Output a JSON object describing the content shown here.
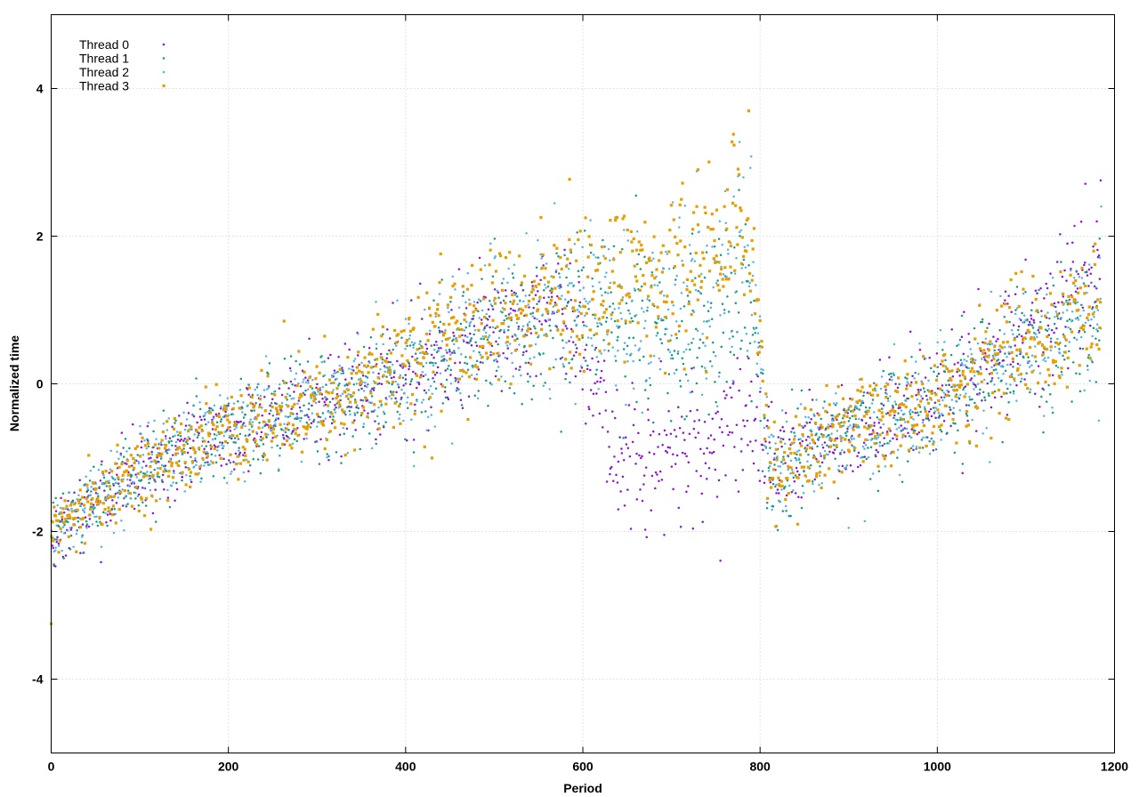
{
  "chart_data": {
    "type": "scatter",
    "title": "",
    "xlabel": "Period",
    "ylabel": "Normalized time",
    "xlim": [
      0,
      1200
    ],
    "ylim": [
      -5,
      5
    ],
    "x_ticks": [
      0,
      200,
      400,
      600,
      800,
      1000,
      1200
    ],
    "y_ticks": [
      -4,
      -2,
      0,
      2,
      4
    ],
    "grid": true,
    "legend_position": "top-left",
    "series": [
      {
        "name": "Thread 0",
        "color": "#8b14d6",
        "marker": "dot",
        "profile": [
          [
            0,
            -2.0
          ],
          [
            100,
            -1.2
          ],
          [
            200,
            -0.6
          ],
          [
            300,
            -0.3
          ],
          [
            400,
            0.2
          ],
          [
            500,
            0.7
          ],
          [
            580,
            1.0
          ],
          [
            640,
            -0.8
          ],
          [
            700,
            -1.0
          ],
          [
            790,
            -0.6
          ],
          [
            820,
            -1.1
          ],
          [
            900,
            -0.6
          ],
          [
            1000,
            -0.2
          ],
          [
            1100,
            0.7
          ],
          [
            1180,
            1.6
          ]
        ],
        "spread": [
          [
            0,
            0.25
          ],
          [
            300,
            0.35
          ],
          [
            580,
            0.45
          ],
          [
            640,
            0.5
          ],
          [
            790,
            0.5
          ],
          [
            820,
            0.3
          ],
          [
            1180,
            0.45
          ]
        ]
      },
      {
        "name": "Thread 1",
        "color": "#159a86",
        "marker": "dot",
        "profile": [
          [
            0,
            -2.0
          ],
          [
            100,
            -1.2
          ],
          [
            200,
            -0.6
          ],
          [
            300,
            -0.3
          ],
          [
            400,
            0.2
          ],
          [
            500,
            0.7
          ],
          [
            600,
            1.0
          ],
          [
            700,
            0.6
          ],
          [
            790,
            1.3
          ],
          [
            810,
            -1.2
          ],
          [
            900,
            -0.6
          ],
          [
            1000,
            -0.2
          ],
          [
            1100,
            0.4
          ],
          [
            1180,
            0.8
          ]
        ],
        "spread": [
          [
            0,
            0.25
          ],
          [
            300,
            0.35
          ],
          [
            600,
            0.55
          ],
          [
            790,
            0.6
          ],
          [
            810,
            0.3
          ],
          [
            1180,
            0.45
          ]
        ]
      },
      {
        "name": "Thread 2",
        "color": "#56b4e9",
        "marker": "dot",
        "profile": [
          [
            0,
            -2.0
          ],
          [
            100,
            -1.2
          ],
          [
            200,
            -0.6
          ],
          [
            300,
            -0.3
          ],
          [
            400,
            0.2
          ],
          [
            500,
            0.8
          ],
          [
            600,
            1.1
          ],
          [
            700,
            0.9
          ],
          [
            790,
            1.6
          ],
          [
            810,
            -1.2
          ],
          [
            900,
            -0.6
          ],
          [
            1000,
            -0.2
          ],
          [
            1100,
            0.5
          ],
          [
            1180,
            0.9
          ]
        ],
        "spread": [
          [
            0,
            0.25
          ],
          [
            300,
            0.35
          ],
          [
            600,
            0.55
          ],
          [
            790,
            0.65
          ],
          [
            810,
            0.3
          ],
          [
            1180,
            0.45
          ]
        ]
      },
      {
        "name": "Thread 3",
        "color": "#e69f00",
        "marker": "square",
        "profile": [
          [
            0,
            -2.0
          ],
          [
            100,
            -1.2
          ],
          [
            200,
            -0.6
          ],
          [
            300,
            -0.3
          ],
          [
            400,
            0.3
          ],
          [
            500,
            0.9
          ],
          [
            600,
            1.3
          ],
          [
            700,
            1.5
          ],
          [
            790,
            2.1
          ],
          [
            810,
            -1.2
          ],
          [
            900,
            -0.6
          ],
          [
            1000,
            -0.2
          ],
          [
            1100,
            0.5
          ],
          [
            1180,
            1.0
          ]
        ],
        "spread": [
          [
            0,
            0.25
          ],
          [
            300,
            0.35
          ],
          [
            600,
            0.5
          ],
          [
            790,
            0.6
          ],
          [
            810,
            0.3
          ],
          [
            1180,
            0.45
          ]
        ]
      }
    ],
    "notable_points": [
      {
        "series": "Thread 3",
        "x": 0,
        "y": -3.25
      },
      {
        "series": "Thread 3",
        "x": 770,
        "y": 3.38
      },
      {
        "series": "Thread 2",
        "x": 790,
        "y": 3.08
      },
      {
        "series": "Thread 3",
        "x": 730,
        "y": 2.9
      },
      {
        "series": "Thread 3",
        "x": 585,
        "y": 2.77
      },
      {
        "series": "Thread 2",
        "x": 1185,
        "y": 2.4
      },
      {
        "series": "Thread 2",
        "x": 900,
        "y": -1.95
      },
      {
        "series": "Thread 1",
        "x": 820,
        "y": -1.98
      },
      {
        "series": "Thread 1",
        "x": 660,
        "y": 2.55
      },
      {
        "series": "Thread 0",
        "x": 640,
        "y": -1.7
      },
      {
        "series": "Thread 0",
        "x": 1180,
        "y": 2.2
      }
    ]
  }
}
